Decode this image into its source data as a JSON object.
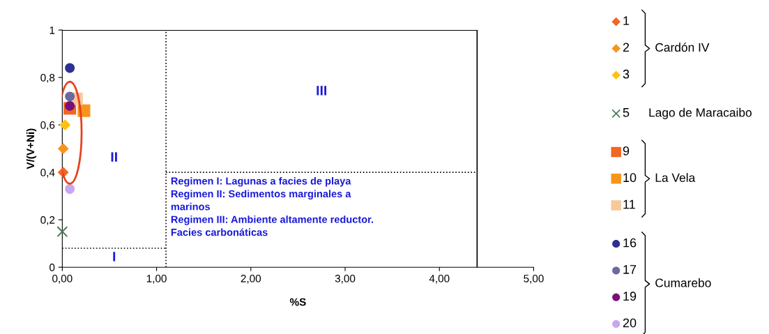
{
  "chart_data": {
    "type": "scatter",
    "xlabel": "%S",
    "ylabel": "V/(V+Ni)",
    "xlim": [
      0,
      5
    ],
    "ylim": [
      0,
      1
    ],
    "xticks": [
      {
        "value": 0,
        "label": "0,00"
      },
      {
        "value": 1,
        "label": "1,00"
      },
      {
        "value": 2,
        "label": "2,00"
      },
      {
        "value": 3,
        "label": "3,00"
      },
      {
        "value": 4,
        "label": "4,00"
      },
      {
        "value": 5,
        "label": "5,00"
      }
    ],
    "yticks": [
      0,
      {
        "value": 0.2,
        "label": "0,2"
      },
      {
        "value": 0.4,
        "label": "0,4"
      },
      {
        "value": 0.6,
        "label": "0,6"
      },
      {
        "value": 0.8,
        "label": "0,8"
      },
      1
    ],
    "grid": false,
    "legend": "right",
    "series": [
      {
        "name": "1",
        "color": "#f26522",
        "marker": "diamond",
        "x": [
          0.01
        ],
        "values": [
          0.4
        ]
      },
      {
        "name": "2",
        "color": "#f7941d",
        "marker": "diamond",
        "x": [
          0.01
        ],
        "values": [
          0.5
        ]
      },
      {
        "name": "3",
        "color": "#ffc20e",
        "marker": "diamond",
        "x": [
          0.03
        ],
        "values": [
          0.6
        ]
      },
      {
        "name": "5",
        "color": "#4a7a5a",
        "marker": "cross",
        "x": [
          0.0
        ],
        "values": [
          0.15
        ]
      },
      {
        "name": "9",
        "color": "#f26522",
        "marker": "square",
        "x": [
          0.08
        ],
        "values": [
          0.67
        ]
      },
      {
        "name": "10",
        "color": "#f7941d",
        "marker": "square",
        "x": [
          0.23
        ],
        "values": [
          0.66
        ]
      },
      {
        "name": "11",
        "color": "#f9c89b",
        "marker": "square",
        "x": [
          0.15
        ],
        "values": [
          0.71
        ]
      },
      {
        "name": "16",
        "color": "#2e3192",
        "marker": "circle",
        "x": [
          0.08
        ],
        "values": [
          0.84
        ]
      },
      {
        "name": "17",
        "color": "#6a6a9e",
        "marker": "circle",
        "x": [
          0.08
        ],
        "values": [
          0.72
        ]
      },
      {
        "name": "19",
        "color": "#7a0f7a",
        "marker": "circle",
        "x": [
          0.08
        ],
        "values": [
          0.68
        ]
      },
      {
        "name": "20",
        "color": "#c9a6f0",
        "marker": "circle",
        "x": [
          0.08
        ],
        "values": [
          0.33
        ]
      },
      {
        "type": "line",
        "color": "#000000",
        "line_style": "solid",
        "x": [
          0,
          4.4
        ],
        "values": [
          1,
          1
        ]
      },
      {
        "type": "line",
        "color": "#000000",
        "line_style": "solid",
        "x": [
          4.4,
          4.4
        ],
        "values": [
          1,
          0
        ]
      },
      {
        "type": "line",
        "color": "#000000",
        "line_style": "dotted",
        "x": [
          1.1,
          1.1
        ],
        "values": [
          0,
          1
        ]
      },
      {
        "type": "line",
        "color": "#000000",
        "line_style": "dotted",
        "x": [
          0,
          1.1
        ],
        "values": [
          0.08,
          0.08
        ]
      },
      {
        "type": "line",
        "color": "#000000",
        "line_style": "dotted",
        "x": [
          1.1,
          4.4
        ],
        "values": [
          0.4,
          0.4
        ]
      }
    ],
    "annotations": [
      "Cardón IV",
      "Lago de Maracaibo",
      "La Vela",
      "Cumarebo",
      "Regimen I: Lagunas a facies de playa\nRegimen II: Sedimentos marginales a\nmarinos\nRegimen III: Ambiente altamente reductor.\nFacies carbonáticas",
      "I",
      "II",
      "III"
    ]
  }
}
